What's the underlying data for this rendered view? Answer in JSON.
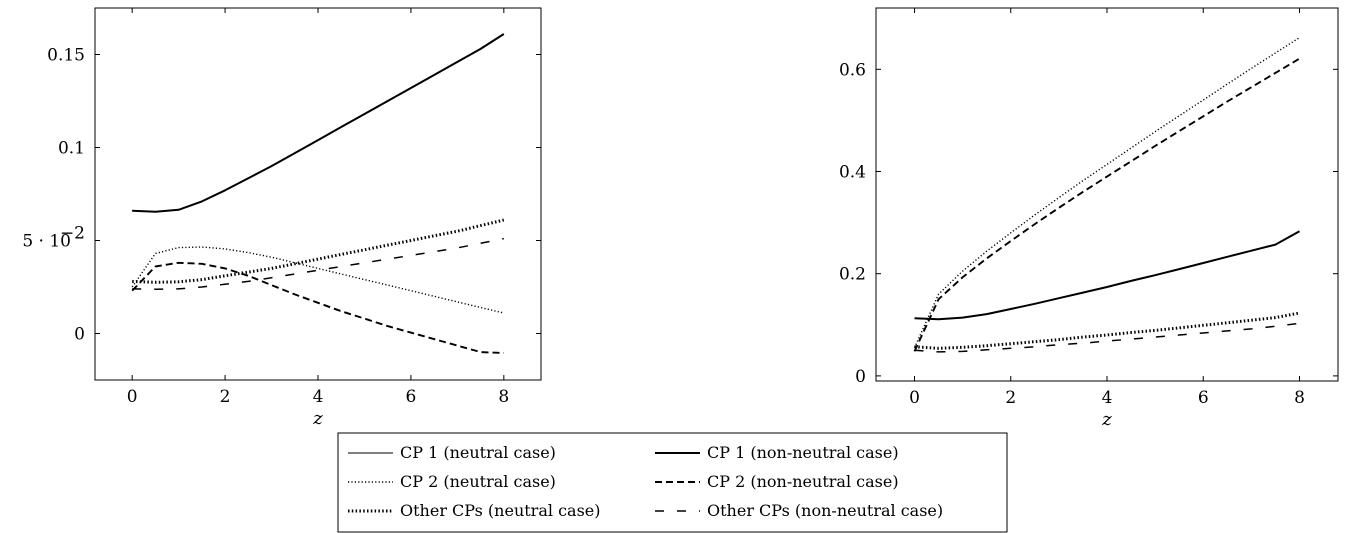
{
  "chart_data": [
    {
      "type": "line",
      "xlabel": "z",
      "ylabel": "",
      "xlim": [
        -0.8,
        8.8
      ],
      "ylim": [
        -0.025,
        0.175
      ],
      "xticks": [
        0,
        2,
        4,
        6,
        8
      ],
      "xtick_labels": [
        "0",
        "2",
        "4",
        "6",
        "8"
      ],
      "yticks": [
        0,
        0.05,
        0.1,
        0.15
      ],
      "ytick_labels": [
        "0",
        "5 · 10",
        "0.1",
        "0.15"
      ],
      "ytick_exponent": "−2",
      "x": [
        0,
        0.5,
        1,
        1.5,
        2,
        2.5,
        3,
        3.5,
        4,
        4.5,
        5,
        5.5,
        6,
        6.5,
        7,
        7.5,
        8
      ],
      "series": [
        {
          "name": "CP 1 (neutral case)",
          "values": [
            0.066,
            0.0655,
            0.0665,
            0.071,
            0.077,
            0.0835,
            0.09,
            0.097,
            0.104,
            0.111,
            0.118,
            0.125,
            0.132,
            0.139,
            0.146,
            0.153,
            0.161
          ]
        },
        {
          "name": "CP 1 (non-neutral case)",
          "values": [
            0.066,
            0.0655,
            0.0665,
            0.071,
            0.077,
            0.0835,
            0.09,
            0.097,
            0.104,
            0.111,
            0.118,
            0.125,
            0.132,
            0.139,
            0.146,
            0.153,
            0.161
          ]
        },
        {
          "name": "CP 2 (neutral case)",
          "values": [
            0.025,
            0.043,
            0.0462,
            0.0465,
            0.0455,
            0.0435,
            0.041,
            0.038,
            0.035,
            0.032,
            0.029,
            0.026,
            0.023,
            0.02,
            0.017,
            0.014,
            0.011
          ]
        },
        {
          "name": "CP 2 (non-neutral case)",
          "values": [
            0.023,
            0.036,
            0.038,
            0.0375,
            0.035,
            0.031,
            0.026,
            0.021,
            0.0165,
            0.012,
            0.008,
            0.004,
            0.0005,
            -0.003,
            -0.0065,
            -0.01,
            -0.0105
          ]
        },
        {
          "name": "Other CPs (neutral case)",
          "values": [
            0.028,
            0.0275,
            0.0278,
            0.029,
            0.031,
            0.033,
            0.035,
            0.0375,
            0.04,
            0.0425,
            0.045,
            0.0475,
            0.05,
            0.0525,
            0.055,
            0.058,
            0.061
          ]
        },
        {
          "name": "Other CPs (non-neutral case)",
          "values": [
            0.024,
            0.0238,
            0.024,
            0.025,
            0.0265,
            0.028,
            0.03,
            0.032,
            0.034,
            0.036,
            0.038,
            0.04,
            0.042,
            0.044,
            0.046,
            0.0485,
            0.051
          ]
        }
      ]
    },
    {
      "type": "line",
      "xlabel": "z",
      "ylabel": "",
      "xlim": [
        -0.8,
        8.8
      ],
      "ylim": [
        -0.01,
        0.72
      ],
      "xticks": [
        0,
        2,
        4,
        6,
        8
      ],
      "xtick_labels": [
        "0",
        "2",
        "4",
        "6",
        "8"
      ],
      "yticks": [
        0,
        0.2,
        0.4,
        0.6
      ],
      "ytick_labels": [
        "0",
        "0.2",
        "0.4",
        "0.6"
      ],
      "x": [
        0,
        0.5,
        1,
        1.5,
        2,
        2.5,
        3,
        3.5,
        4,
        4.5,
        5,
        5.5,
        6,
        6.5,
        7,
        7.5,
        8
      ],
      "series": [
        {
          "name": "CP 1 (neutral case)",
          "values": [
            0.113,
            0.111,
            0.114,
            0.121,
            0.131,
            0.141,
            0.152,
            0.163,
            0.174,
            0.186,
            0.197,
            0.209,
            0.221,
            0.233,
            0.245,
            0.257,
            0.283
          ]
        },
        {
          "name": "CP 1 (non-neutral case)",
          "values": [
            0.113,
            0.111,
            0.114,
            0.121,
            0.131,
            0.141,
            0.152,
            0.163,
            0.174,
            0.186,
            0.197,
            0.209,
            0.221,
            0.233,
            0.245,
            0.257,
            0.283
          ]
        },
        {
          "name": "CP 2 (neutral case)",
          "values": [
            0.055,
            0.16,
            0.205,
            0.244,
            0.28,
            0.315,
            0.349,
            0.382,
            0.414,
            0.446,
            0.478,
            0.509,
            0.54,
            0.571,
            0.602,
            0.632,
            0.662
          ]
        },
        {
          "name": "CP 2 (non-neutral case)",
          "values": [
            0.048,
            0.15,
            0.193,
            0.23,
            0.264,
            0.297,
            0.329,
            0.36,
            0.39,
            0.42,
            0.45,
            0.479,
            0.508,
            0.537,
            0.565,
            0.593,
            0.621
          ]
        },
        {
          "name": "Other CPs (neutral case)",
          "values": [
            0.057,
            0.054,
            0.056,
            0.059,
            0.063,
            0.067,
            0.071,
            0.076,
            0.08,
            0.085,
            0.089,
            0.094,
            0.099,
            0.104,
            0.109,
            0.114,
            0.123
          ]
        },
        {
          "name": "Other CPs (non-neutral case)",
          "values": [
            0.05,
            0.047,
            0.048,
            0.051,
            0.054,
            0.057,
            0.061,
            0.064,
            0.068,
            0.072,
            0.076,
            0.08,
            0.084,
            0.088,
            0.092,
            0.097,
            0.103
          ]
        }
      ]
    }
  ],
  "legend": {
    "placement": "bottom-center",
    "entries": [
      {
        "label": "CP 1 (neutral case)",
        "style": "solid-thin"
      },
      {
        "label": "CP 1 (non-neutral case)",
        "style": "solid-thick"
      },
      {
        "label": "CP 2 (neutral case)",
        "style": "dotted-thin"
      },
      {
        "label": "CP 2 (non-neutral case)",
        "style": "dashed"
      },
      {
        "label": "Other CPs (neutral case)",
        "style": "dotted-thick"
      },
      {
        "label": "Other CPs (non-neutral case)",
        "style": "loosely-dashed"
      }
    ]
  },
  "colors": {
    "line": "#000000",
    "frame": "#000000",
    "background": "#ffffff"
  }
}
